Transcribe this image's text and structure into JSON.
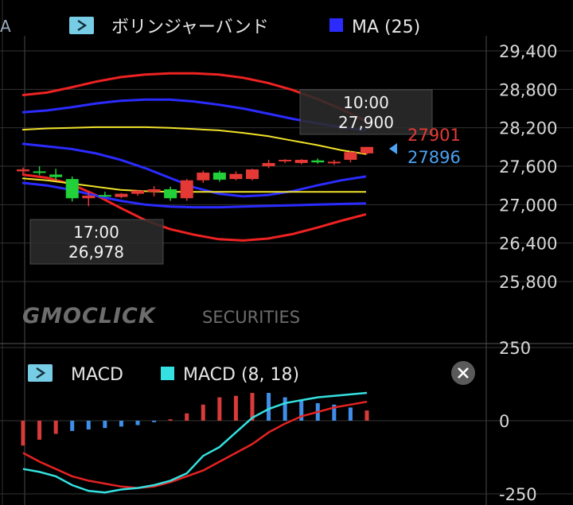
{
  "edge_label": "A",
  "main_panel": {
    "indicator_name": "ボリンジャーバンド",
    "ma_label": "MA (25)",
    "watermark_brand": "GMOCLICK",
    "watermark_sub": "SECURITIES",
    "y_ticks": [
      "29,400",
      "28,800",
      "28,200",
      "27,600",
      "27,000",
      "26,400",
      "25,800"
    ],
    "high_tooltip": {
      "time": "10:00",
      "value": "27,900"
    },
    "low_tooltip": {
      "time": "17:00",
      "value": "26,978"
    },
    "price_ask": "27901",
    "price_bid": "27896"
  },
  "macd_panel": {
    "name": "MACD",
    "setting_label": "MACD (8, 18)",
    "y_ticks": [
      "250",
      "0",
      "-250"
    ]
  },
  "colors": {
    "up": "#e53935",
    "down": "#22d03a",
    "band_outer": "#ee2222",
    "band_inner": "#2b2bff",
    "ma": "#f0e12a",
    "macd_line": "#35e0e0",
    "signal_line": "#e52222",
    "hist_pos": "#d93a3a",
    "hist_neg": "#3f8fe8",
    "ask": "#e53935",
    "bid": "#4ba3f2"
  },
  "chart_data": [
    {
      "type": "candlestick",
      "y_unit": "price",
      "ylim": [
        25500,
        29700
      ],
      "candles": [
        {
          "o": 27520,
          "h": 27580,
          "l": 27470,
          "c": 27550
        },
        {
          "o": 27520,
          "h": 27600,
          "l": 27460,
          "c": 27500
        },
        {
          "o": 27470,
          "h": 27560,
          "l": 27380,
          "c": 27430
        },
        {
          "o": 27400,
          "h": 27440,
          "l": 27050,
          "c": 27100
        },
        {
          "o": 27100,
          "h": 27200,
          "l": 26978,
          "c": 27140
        },
        {
          "o": 27150,
          "h": 27200,
          "l": 27120,
          "c": 27130
        },
        {
          "o": 27120,
          "h": 27180,
          "l": 27100,
          "c": 27170
        },
        {
          "o": 27170,
          "h": 27230,
          "l": 27140,
          "c": 27220
        },
        {
          "o": 27200,
          "h": 27290,
          "l": 27130,
          "c": 27240
        },
        {
          "o": 27240,
          "h": 27280,
          "l": 27060,
          "c": 27100
        },
        {
          "o": 27100,
          "h": 27400,
          "l": 27060,
          "c": 27380
        },
        {
          "o": 27380,
          "h": 27530,
          "l": 27340,
          "c": 27500
        },
        {
          "o": 27500,
          "h": 27530,
          "l": 27360,
          "c": 27390
        },
        {
          "o": 27400,
          "h": 27520,
          "l": 27380,
          "c": 27480
        },
        {
          "o": 27400,
          "h": 27560,
          "l": 27380,
          "c": 27550
        },
        {
          "o": 27600,
          "h": 27700,
          "l": 27570,
          "c": 27650
        },
        {
          "o": 27680,
          "h": 27710,
          "l": 27650,
          "c": 27700
        },
        {
          "o": 27650,
          "h": 27710,
          "l": 27630,
          "c": 27700
        },
        {
          "o": 27690,
          "h": 27720,
          "l": 27640,
          "c": 27660
        },
        {
          "o": 27650,
          "h": 27700,
          "l": 27620,
          "c": 27670
        },
        {
          "o": 27700,
          "h": 27840,
          "l": 27660,
          "c": 27820
        },
        {
          "o": 27800,
          "h": 27900,
          "l": 27780,
          "c": 27901
        }
      ],
      "bands": {
        "upper_outer": [
          28710,
          28750,
          28830,
          28920,
          28990,
          29030,
          29050,
          29050,
          29030,
          28980,
          28900,
          28790,
          28650,
          28490,
          28300
        ],
        "upper_inner": [
          28440,
          28470,
          28520,
          28580,
          28620,
          28640,
          28640,
          28610,
          28560,
          28500,
          28420,
          28340,
          28270,
          28210,
          28160
        ],
        "ma": [
          28170,
          28190,
          28200,
          28210,
          28210,
          28210,
          28200,
          28180,
          28160,
          28120,
          28070,
          28000,
          27930,
          27850,
          27790
        ],
        "lower_inner": [
          27950,
          27910,
          27870,
          27800,
          27700,
          27570,
          27420,
          27270,
          27170,
          27130,
          27150,
          27210,
          27300,
          27380,
          27440
        ],
        "lower_outer": [
          27470,
          27420,
          27320,
          27150,
          26950,
          26760,
          26620,
          26530,
          26460,
          26440,
          26470,
          26540,
          26640,
          26750,
          26850
        ]
      },
      "ma_lower": [
        27410,
        27380,
        27330,
        27280,
        27230,
        27210,
        27200,
        27200,
        27200,
        27200,
        27200,
        27200,
        27200,
        27200,
        27200
      ],
      "lower_inner_2": [
        27340,
        27300,
        27230,
        27140,
        27060,
        27000,
        26970,
        26960,
        26960,
        26970,
        26980,
        26990,
        27000,
        27010,
        27020
      ]
    },
    {
      "type": "bar+line",
      "name": "MACD (8, 18)",
      "ylim": [
        -250,
        250
      ],
      "histogram": [
        -85,
        -65,
        -45,
        -35,
        -30,
        -25,
        -20,
        -15,
        -5,
        5,
        25,
        55,
        80,
        85,
        95,
        95,
        80,
        70,
        60,
        55,
        45,
        35
      ],
      "macd": [
        -165,
        -175,
        -190,
        -220,
        -240,
        -245,
        -235,
        -230,
        -220,
        -205,
        -180,
        -120,
        -90,
        -40,
        10,
        40,
        60,
        70,
        80,
        85,
        90,
        95
      ],
      "signal": [
        -110,
        -140,
        -165,
        -190,
        -205,
        -215,
        -225,
        -230,
        -225,
        -210,
        -190,
        -170,
        -140,
        -110,
        -80,
        -40,
        -10,
        15,
        30,
        45,
        55,
        65
      ]
    }
  ]
}
